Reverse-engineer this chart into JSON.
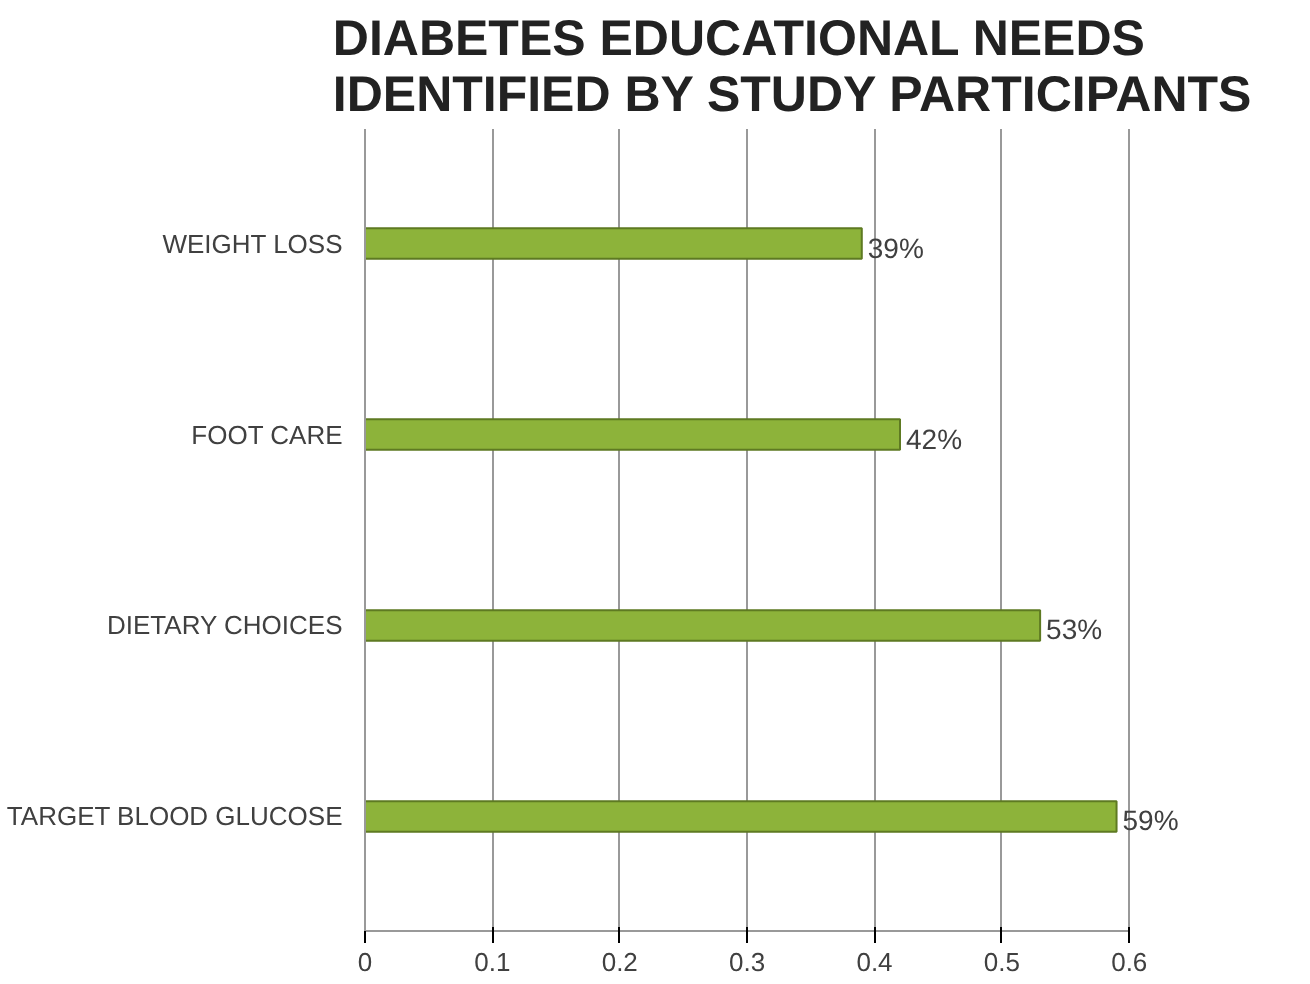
{
  "chart_data": {
    "type": "bar",
    "orientation": "horizontal",
    "title": "DIABETES EDUCATIONAL NEEDS\nIDENTIFIED BY STUDY PARTICIPANTS",
    "categories": [
      "WEIGHT LOSS",
      "FOOT CARE",
      "DIETARY CHOICES",
      "TARGET BLOOD GLUCOSE"
    ],
    "values": [
      0.39,
      0.42,
      0.53,
      0.59
    ],
    "value_labels": [
      "39%",
      "42%",
      "53%",
      "59%"
    ],
    "color": "#8db33a",
    "xlim": [
      0,
      0.6
    ],
    "xticks": [
      0,
      0.1,
      0.2,
      0.3,
      0.4,
      0.5,
      0.6
    ],
    "grid": "x"
  }
}
